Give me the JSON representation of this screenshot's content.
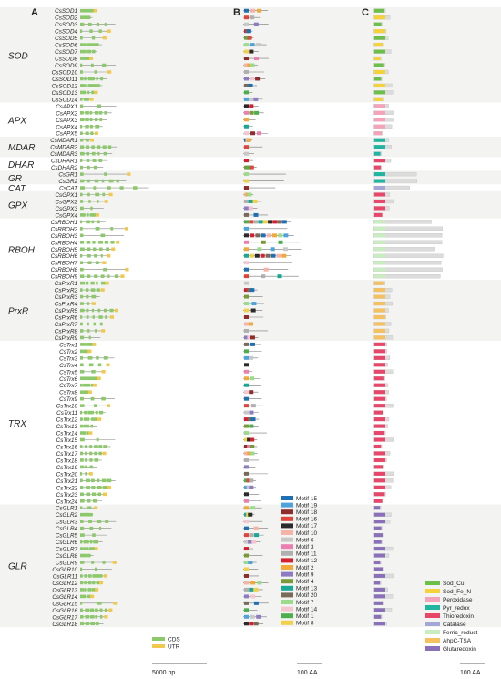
{
  "panels": {
    "a": "A",
    "b": "B",
    "c": "C"
  },
  "families": [
    {
      "name": "SOD",
      "genes": [
        "CsSOD1",
        "CsSOD2",
        "CsSOD3",
        "CsSOD4",
        "CsSOD5",
        "CsSOD6",
        "CsSOD7",
        "CsSOD8",
        "CsSOD9",
        "CsSOD10",
        "CsSOD11",
        "CsSOD12",
        "CsSOD13",
        "CsSOD14"
      ]
    },
    {
      "name": "APX",
      "genes": [
        "CsAPX1",
        "CsAPX2",
        "CsAPX3",
        "CsAPX4",
        "CsAPX5"
      ]
    },
    {
      "name": "MDAR",
      "genes": [
        "CsMDAR1",
        "CsMDAR2",
        "CsMDAR3"
      ]
    },
    {
      "name": "DHAR",
      "genes": [
        "CsDHAR1",
        "CsDHAR2"
      ]
    },
    {
      "name": "GR",
      "genes": [
        "CsGR1",
        "CsGR2"
      ]
    },
    {
      "name": "CAT",
      "genes": [
        "CsCAT"
      ]
    },
    {
      "name": "GPX",
      "genes": [
        "CsGPX1",
        "CsGPX2",
        "CsGPX3",
        "CsGPX4"
      ]
    },
    {
      "name": "RBOH",
      "genes": [
        "CsRBOH1",
        "CsRBOH2",
        "CsRBOH3",
        "CsRBOH4",
        "CsRBOH5",
        "CsRBOH6",
        "CsRBOH7",
        "CsRBOH8",
        "CsRBOH9"
      ]
    },
    {
      "name": "PrxR",
      "genes": [
        "CsPrxR1",
        "CsPrxR2",
        "CsPrxR3",
        "CsPrxR4",
        "CsPrxR5",
        "CsPrxR6",
        "CsPrxR7",
        "CsPrxR8",
        "CsPrxR9"
      ]
    },
    {
      "name": "TRX",
      "genes": [
        "CsTrx1",
        "CsTrx2",
        "CsTrx3",
        "CsTrx4",
        "CsTrx5",
        "CsTrx6",
        "CsTrx7",
        "CsTrx8",
        "CsTrx9",
        "CsTrx10",
        "CsTrx11",
        "CsTrx12",
        "CsTrx13",
        "CsTrx14",
        "CsTrx15",
        "CsTrx16",
        "CsTrx17",
        "CsTrx18",
        "CsTrx19",
        "CsTrx20",
        "CsTrx21",
        "CsTrx22",
        "CsTrx23",
        "CsTrx24"
      ]
    },
    {
      "name": "GLR",
      "genes": [
        "CsGLR1",
        "CsGLR2",
        "CsGLR3",
        "CsGLR4",
        "CsGLR5",
        "CsGLR6",
        "CsGLR7",
        "CsGLR8",
        "CsGLR9",
        "CsGLR10",
        "CsGLR11",
        "CsGLR12",
        "CsGLR13",
        "CsGLR14",
        "CsGLR15",
        "CsGLR16",
        "CsGLR17",
        "CsGLR18"
      ]
    }
  ],
  "legend_a": [
    {
      "label": "CDS",
      "color": "#8cc96a"
    },
    {
      "label": "UTR",
      "color": "#f2c94c"
    }
  ],
  "motifs": [
    {
      "label": "Motif 15",
      "color": "#1f6fb4"
    },
    {
      "label": "Motif 19",
      "color": "#4ea3dc"
    },
    {
      "label": "Motif 18",
      "color": "#8f2d2d"
    },
    {
      "label": "Motif 16",
      "color": "#e0453b"
    },
    {
      "label": "Motif 17",
      "color": "#2b2b2b"
    },
    {
      "label": "Motif 10",
      "color": "#f6b4a8"
    },
    {
      "label": "Motif 6",
      "color": "#c8c8c8"
    },
    {
      "label": "Motif 3",
      "color": "#ec7fb0"
    },
    {
      "label": "Motif 11",
      "color": "#b0b0b0"
    },
    {
      "label": "Motif 12",
      "color": "#d62030"
    },
    {
      "label": "Motif 2",
      "color": "#f0a93a"
    },
    {
      "label": "Motif 9",
      "color": "#8e7cc3"
    },
    {
      "label": "Motif 4",
      "color": "#7a9a3a"
    },
    {
      "label": "Motif 13",
      "color": "#19a896"
    },
    {
      "label": "Motif 20",
      "color": "#7a6a5a"
    },
    {
      "label": "Motif 7",
      "color": "#9adc8a"
    },
    {
      "label": "Motif 14",
      "color": "#f4c6d0"
    },
    {
      "label": "Motif 1",
      "color": "#4cae4c"
    },
    {
      "label": "Motif 8",
      "color": "#f1d04a"
    }
  ],
  "domains": [
    {
      "label": "Sod_Cu",
      "color": "#6cc04a"
    },
    {
      "label": "Sod_Fe_N",
      "color": "#f5d23a"
    },
    {
      "label": "Peroxidase",
      "color": "#f4a3b8"
    },
    {
      "label": "Pyr_redox",
      "color": "#1fb5a0"
    },
    {
      "label": "Thioredoxin",
      "color": "#e8476a"
    },
    {
      "label": "Catalase",
      "color": "#a4a6d6"
    },
    {
      "label": "Ferric_reduct",
      "color": "#c9ecc0"
    },
    {
      "label": "AhpC-TSA",
      "color": "#f5c060"
    },
    {
      "label": "Glutaredoxin",
      "color": "#8a70b8"
    }
  ],
  "scales": {
    "a": "5000 bp",
    "b": "100 AA",
    "c": "100 AA"
  }
}
